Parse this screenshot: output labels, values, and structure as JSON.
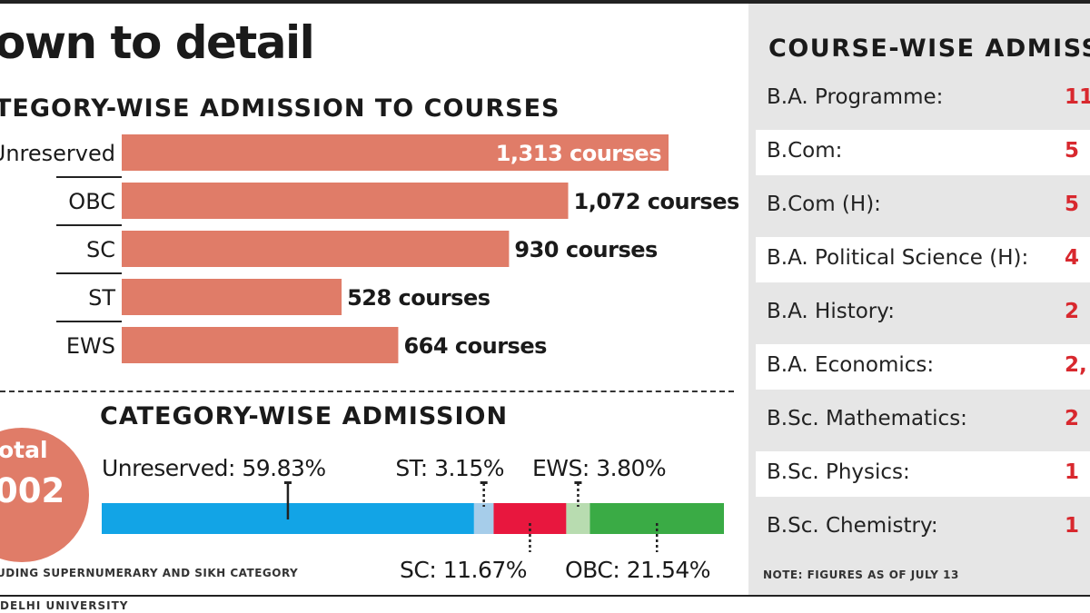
{
  "header": {
    "title": "own to detail"
  },
  "chart_data": [
    {
      "type": "bar",
      "orientation": "horizontal",
      "title": "TEGORY-WISE ADMISSION TO COURSES",
      "categories": [
        "Unreserved",
        "OBC",
        "SC",
        "ST",
        "EWS"
      ],
      "values": [
        1313,
        1072,
        930,
        528,
        664
      ],
      "value_labels": [
        "1,313 courses",
        "1,072 courses",
        "930 courses",
        "528 courses",
        "664 courses"
      ],
      "xlim": [
        0,
        1313
      ],
      "colors": {
        "bar": "#e07c68"
      }
    },
    {
      "type": "bar",
      "orientation": "stacked-horizontal",
      "title": "CATEGORY-WISE ADMISSION",
      "categories": [
        "Unreserved",
        "ST",
        "SC",
        "EWS",
        "OBC"
      ],
      "values": [
        59.83,
        3.15,
        11.67,
        3.8,
        21.54
      ],
      "labels": [
        "Unreserved: 59.83%",
        "ST: 3.15%",
        "SC: 11.67%",
        "EWS: 3.80%",
        "OBC: 21.54%"
      ],
      "colors": [
        "#12a4e6",
        "#a6cdea",
        "#e8173e",
        "#b8dcb0",
        "#3aab45"
      ]
    },
    {
      "type": "table",
      "title": "COURSE-WISE ADMISSIO",
      "rows": [
        {
          "course": "B.A. Programme:",
          "value": "11"
        },
        {
          "course": "B.Com:",
          "value": "5"
        },
        {
          "course": "B.Com (H):",
          "value": "5"
        },
        {
          "course": "B.A. Political Science (H):",
          "value": "4"
        },
        {
          "course": "B.A. History:",
          "value": "2"
        },
        {
          "course": "B.A. Economics:",
          "value": "2,"
        },
        {
          "course": "B.Sc. Mathematics:",
          "value": "2"
        },
        {
          "course": "B.Sc. Physics:",
          "value": "1"
        },
        {
          "course": "B.Sc. Chemistry:",
          "value": "1"
        }
      ],
      "note": "NOTE: FIGURES AS OF JULY 13"
    }
  ],
  "total": {
    "label": "otal",
    "value": "002"
  },
  "footnote": "UDING SUPERNUMERARY AND SIKH CATEGORY",
  "source": "DELHI UNIVERSITY"
}
